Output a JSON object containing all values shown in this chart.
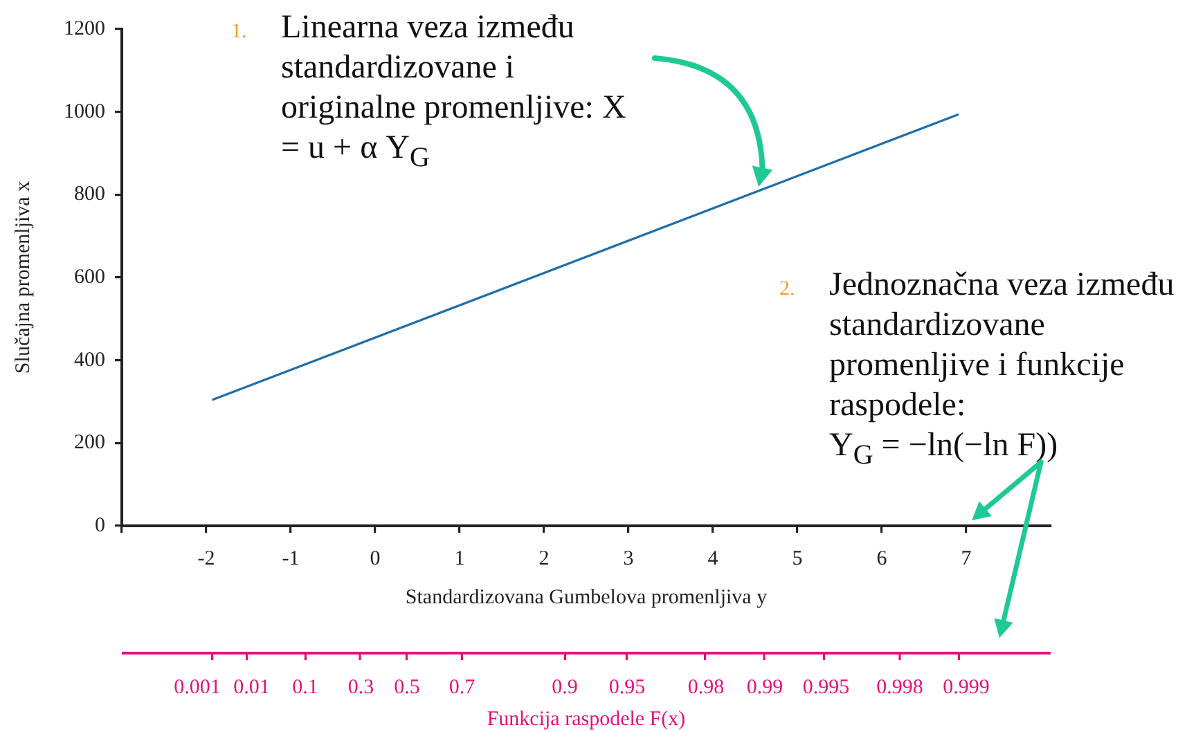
{
  "chart_data": {
    "type": "line",
    "xlabel": "Standardizovana Gumbelova promenljiva y",
    "ylabel": "Slučajna promenljiva x",
    "x2label": "Funkcija raspodele F(x)",
    "x": [
      -1.93,
      6.91
    ],
    "series": [
      {
        "color": "#1f6ea8",
        "values": [
          304,
          994
        ]
      }
    ],
    "xlim": [
      -3,
      8
    ],
    "xticks": [
      {
        "value": -3,
        "label": null
      },
      -2,
      -1,
      0,
      1,
      2,
      3,
      4,
      5,
      6,
      7
    ],
    "ylim": [
      0,
      1200
    ],
    "yticks": [
      0,
      200,
      400,
      600,
      800,
      1000,
      1200
    ],
    "annotations": [
      "1. Linearna veza između standardizovane i originalne promenljive: X = u + α Y$_{G}$",
      "2. Jednoznačna veza između standardizovane promenljive i funkcije raspodele:\nY$_{G}$ = −ln(−ln F))",
      "0.001",
      "0.01",
      "0.1",
      "0.3",
      "0.5",
      "0.7",
      "0.9",
      "0.95",
      "0.98",
      "0.99",
      "0.995",
      "0.998",
      "0.999"
    ]
  }
}
